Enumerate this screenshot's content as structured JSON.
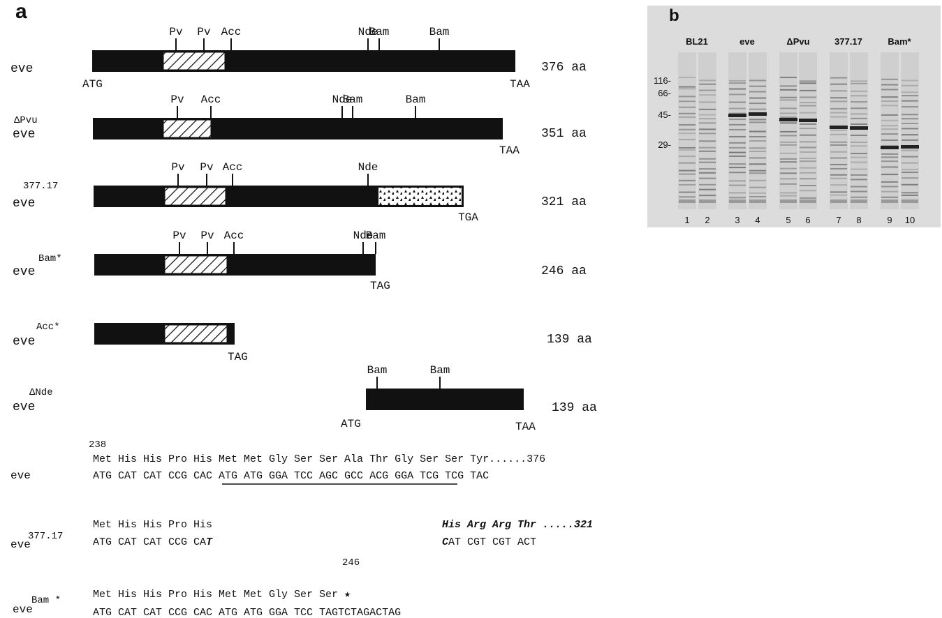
{
  "panel_a": {
    "label": "a",
    "constructs": [
      {
        "name": "eve",
        "superscript": null,
        "sites": [
          "Pv",
          "Pv",
          "Acc",
          "Nde",
          "Bam",
          "Bam"
        ],
        "start": "ATG",
        "stop": "TAA",
        "length": "376 aa"
      },
      {
        "name": "eve",
        "superscript": "ΔPvu",
        "sites": [
          "Pv",
          "Acc",
          "Nde",
          "Bam",
          "Bam"
        ],
        "start": null,
        "stop": "TAA",
        "length": "351 aa"
      },
      {
        "name": "eve",
        "superscript": "377.17",
        "sites": [
          "Pv",
          "Pv",
          "Acc",
          "Nde"
        ],
        "start": null,
        "stop": "TGA",
        "length": "321 aa"
      },
      {
        "name": "eve",
        "superscript": "Bam*",
        "sites": [
          "Pv",
          "Pv",
          "Acc",
          "Nde",
          "Bam"
        ],
        "start": null,
        "stop": "TAG",
        "length": "246 aa"
      },
      {
        "name": "eve",
        "superscript": "Acc*",
        "sites": [],
        "start": null,
        "stop": "TAG",
        "length": "139 aa"
      },
      {
        "name": "eve",
        "superscript": "ΔNde",
        "sites": [
          "Bam",
          "Bam"
        ],
        "start": "ATG",
        "stop": "TAA",
        "length": "139 aa"
      }
    ],
    "sequences": [
      {
        "name": "eve",
        "superscript": null,
        "position": "238",
        "protein": "Met His His Pro His Met Met Gly Ser Ser Ala Thr Gly Ser Ser Tyr......376",
        "dna": [
          "ATG CAT CAT CCG CAC ATG ATG GGA TCC AGC GCC ACG GGA TCG TCG TAC"
        ]
      },
      {
        "name": "eve",
        "superscript": "377.17",
        "position": null,
        "protein": "Met His His Pro His",
        "dna": [
          "ATG CAT CAT CCG CA",
          "T"
        ],
        "fusion_protein": "His Arg Arg Thr .....321",
        "fusion_dna": [
          "C",
          "AT CGT CGT ACT"
        ]
      },
      {
        "name": "eve",
        "superscript": "Bam *",
        "position": "246",
        "protein": "Met His His Pro His Met Met Gly Ser Ser ★",
        "dna": [
          "ATG CAT CAT CCG CAC ATG ATG GGA TCC TAGTCTAGACTAG"
        ]
      }
    ]
  },
  "panel_b": {
    "label": "b",
    "lane_groups": [
      "BL21",
      "eve",
      "ΔPvu",
      "377.17",
      "Bam*"
    ],
    "markers": [
      "116-",
      "66-",
      "45-",
      "29-"
    ],
    "lanes": [
      "1",
      "2",
      "3",
      "4",
      "5",
      "6",
      "7",
      "8",
      "9",
      "10"
    ]
  }
}
